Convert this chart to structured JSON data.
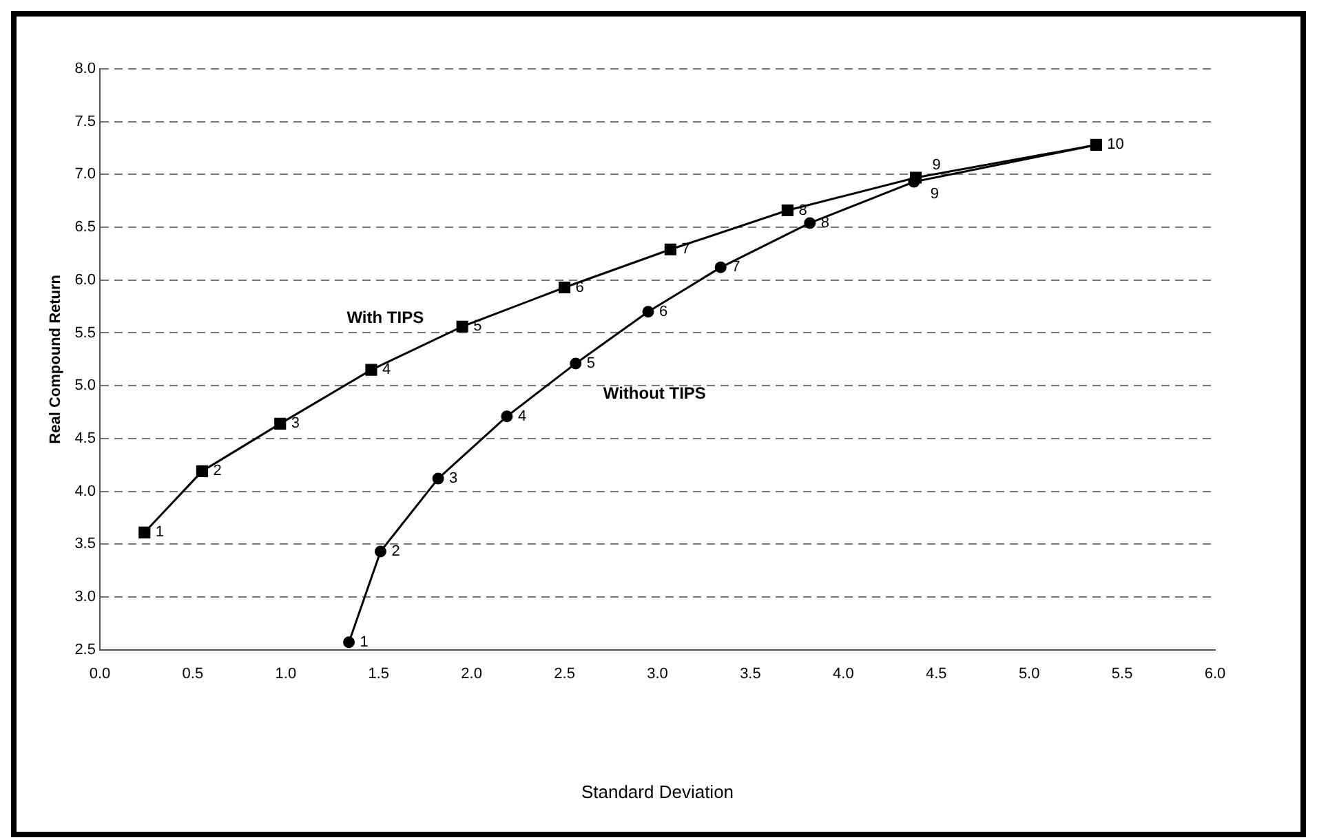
{
  "chart_data": {
    "type": "line",
    "ylabel": "Real Compound Return",
    "xlim": [
      0,
      6
    ],
    "xticks": [
      {
        "value": 0,
        "label": "0.0"
      },
      0.5,
      {
        "value": 1,
        "label": "1.0"
      },
      1.5,
      {
        "value": 2,
        "label": "2.0"
      },
      2.5,
      {
        "value": 3,
        "label": "3.0"
      },
      3.5,
      {
        "value": 4,
        "label": "4.0"
      },
      4.5,
      {
        "value": 5,
        "label": "5.0"
      },
      5.5,
      {
        "value": 6,
        "label": "6.0"
      }
    ],
    "ylim": [
      2.5,
      8
    ],
    "yticks": [
      2.5,
      {
        "value": 3,
        "label": "3.0"
      },
      3.5,
      {
        "value": 4,
        "label": "4.0"
      },
      4.5,
      {
        "value": 5,
        "label": "5.0"
      },
      5.5,
      {
        "value": 6,
        "label": "6.0"
      },
      6.5,
      {
        "value": 7,
        "label": "7.0"
      },
      7.5,
      {
        "value": 8,
        "label": "8.0"
      }
    ],
    "grid": "y",
    "legend": false,
    "series": [
      {
        "name": "With TIPS",
        "color": "#000000",
        "marker": "square",
        "x": [
          0.24,
          0.55,
          0.97,
          1.46,
          1.95,
          2.5,
          3.07,
          3.7,
          4.39,
          5.36
        ],
        "values": [
          3.61,
          4.19,
          4.64,
          5.15,
          5.56,
          5.93,
          6.29,
          6.66,
          6.97,
          7.28
        ]
      },
      {
        "name": "Without TIPS",
        "color": "#000000",
        "marker": "circle",
        "x": [
          1.34,
          1.51,
          1.82,
          2.19,
          2.56,
          2.95,
          3.34,
          3.82,
          4.38,
          5.36
        ],
        "values": [
          2.57,
          3.43,
          4.12,
          4.71,
          5.21,
          5.7,
          6.12,
          6.54,
          6.93,
          7.28
        ]
      }
    ],
    "annotations": [
      {
        "text": "1",
        "x": 0.24,
        "y": 3.61
      },
      {
        "text": "2",
        "x": 0.55,
        "y": 4.19
      },
      {
        "text": "3",
        "x": 0.97,
        "y": 4.64
      },
      {
        "text": "4",
        "x": 1.46,
        "y": 5.15
      },
      {
        "text": "5",
        "x": 1.95,
        "y": 5.56
      },
      {
        "text": "6",
        "x": 2.5,
        "y": 5.93
      },
      {
        "text": "7",
        "x": 3.07,
        "y": 6.29
      },
      {
        "text": "8",
        "x": 3.7,
        "y": 6.66
      },
      {
        "text": "9",
        "x": 4.39,
        "y": 6.97
      },
      {
        "text": "10",
        "x": 5.36,
        "y": 7.28
      },
      {
        "text": "1",
        "x": 1.34,
        "y": 2.57
      },
      {
        "text": "2",
        "x": 1.51,
        "y": 3.43
      },
      {
        "text": "3",
        "x": 1.82,
        "y": 4.12
      },
      {
        "text": "4",
        "x": 2.19,
        "y": 4.71
      },
      {
        "text": "5",
        "x": 2.56,
        "y": 5.21
      },
      {
        "text": "6",
        "x": 2.95,
        "y": 5.7
      },
      {
        "text": "7",
        "x": 3.34,
        "y": 6.12
      },
      {
        "text": "8",
        "x": 3.82,
        "y": 6.54
      },
      {
        "text": "9",
        "x": 4.38,
        "y": 6.93
      },
      "Standard Deviation"
    ]
  }
}
